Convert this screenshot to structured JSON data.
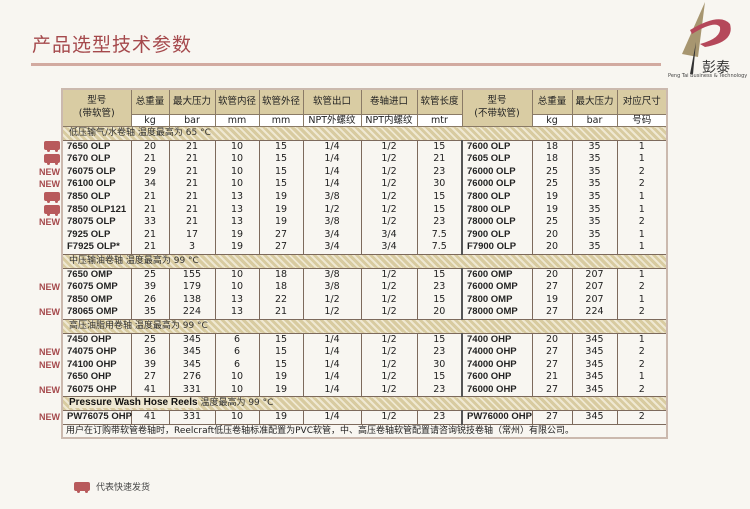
{
  "title": "产品选型技术参数",
  "logo": {
    "chars": "彭泰",
    "subtitle": "Peng Tai Business & Technology"
  },
  "header": {
    "model_with_hose": [
      "型号",
      "(带软管)"
    ],
    "weight": "总重量",
    "pressure": "最大压力",
    "hose_id": "软管内径",
    "hose_od": "软管外径",
    "outlet": "软管出口",
    "inlet": "卷轴进口",
    "length": "软管长度",
    "model_without_hose": [
      "型号",
      "(不带软管)"
    ],
    "weight2": "总重量",
    "pressure2": "最大压力",
    "size": "对应尺寸",
    "units": [
      "kg",
      "bar",
      "mm",
      "mm",
      "NPT外螺纹",
      "NPT内螺纹",
      "mtr",
      "kg",
      "bar",
      "号码"
    ]
  },
  "sections": [
    {
      "title": "低压输气/水卷轴  温度最高为 65 °C",
      "rows": [
        {
          "badge": "truck",
          "model": "7650 OLP",
          "w": "20",
          "p": "21",
          "id": "10",
          "od": "15",
          "out": "1/4",
          "in": "1/2",
          "len": "15",
          "model2": "7600 OLP",
          "w2": "18",
          "p2": "35",
          "size": "1"
        },
        {
          "badge": "truck",
          "model": "7670 OLP",
          "w": "21",
          "p": "21",
          "id": "10",
          "od": "15",
          "out": "1/4",
          "in": "1/2",
          "len": "21",
          "model2": "7605 OLP",
          "w2": "18",
          "p2": "35",
          "size": "1"
        },
        {
          "badge": "NEW",
          "model": "76075 OLP",
          "w": "29",
          "p": "21",
          "id": "10",
          "od": "15",
          "out": "1/4",
          "in": "1/2",
          "len": "23",
          "model2": "76000 OLP",
          "w2": "25",
          "p2": "35",
          "size": "2"
        },
        {
          "badge": "NEW",
          "model": "76100 OLP",
          "w": "34",
          "p": "21",
          "id": "10",
          "od": "15",
          "out": "1/4",
          "in": "1/2",
          "len": "30",
          "model2": "76000 OLP",
          "w2": "25",
          "p2": "35",
          "size": "2"
        },
        {
          "badge": "truck",
          "model": "7850 OLP",
          "w": "21",
          "p": "21",
          "id": "13",
          "od": "19",
          "out": "3/8",
          "in": "1/2",
          "len": "15",
          "model2": "7800 OLP",
          "w2": "19",
          "p2": "35",
          "size": "1"
        },
        {
          "badge": "truck",
          "model": "7850 OLP121",
          "w": "21",
          "p": "21",
          "id": "13",
          "od": "19",
          "out": "1/2",
          "in": "1/2",
          "len": "15",
          "model2": "7800 OLP",
          "w2": "19",
          "p2": "35",
          "size": "1"
        },
        {
          "badge": "NEW",
          "model": "78075 OLP",
          "w": "33",
          "p": "21",
          "id": "13",
          "od": "19",
          "out": "3/8",
          "in": "1/2",
          "len": "23",
          "model2": "78000 OLP",
          "w2": "25",
          "p2": "35",
          "size": "2"
        },
        {
          "badge": "",
          "model": "7925 OLP",
          "w": "21",
          "p": "17",
          "id": "19",
          "od": "27",
          "out": "3/4",
          "in": "3/4",
          "len": "7.5",
          "model2": "7900 OLP",
          "w2": "20",
          "p2": "35",
          "size": "1"
        },
        {
          "badge": "",
          "model": "F7925 OLP*",
          "w": "21",
          "p": "3",
          "id": "19",
          "od": "27",
          "out": "3/4",
          "in": "3/4",
          "len": "7.5",
          "model2": "F7900 OLP",
          "w2": "20",
          "p2": "35",
          "size": "1"
        }
      ]
    },
    {
      "title": "中压输油卷轴  温度最高为 99 °C",
      "rows": [
        {
          "badge": "",
          "model": "7650 OMP",
          "w": "25",
          "p": "155",
          "id": "10",
          "od": "18",
          "out": "3/8",
          "in": "1/2",
          "len": "15",
          "model2": "7600 OMP",
          "w2": "20",
          "p2": "207",
          "size": "1"
        },
        {
          "badge": "NEW",
          "model": "76075 OMP",
          "w": "39",
          "p": "179",
          "id": "10",
          "od": "18",
          "out": "3/8",
          "in": "1/2",
          "len": "23",
          "model2": "76000 OMP",
          "w2": "27",
          "p2": "207",
          "size": "2"
        },
        {
          "badge": "",
          "model": "7850 OMP",
          "w": "26",
          "p": "138",
          "id": "13",
          "od": "22",
          "out": "1/2",
          "in": "1/2",
          "len": "15",
          "model2": "7800 OMP",
          "w2": "19",
          "p2": "207",
          "size": "1"
        },
        {
          "badge": "NEW",
          "model": "78065 OMP",
          "w": "35",
          "p": "224",
          "id": "13",
          "od": "21",
          "out": "1/2",
          "in": "1/2",
          "len": "20",
          "model2": "78000 OMP",
          "w2": "27",
          "p2": "224",
          "size": "2"
        }
      ]
    },
    {
      "title": "高压油脂用卷轴  温度最高为 99 °C",
      "rows": [
        {
          "badge": "",
          "model": "7450 OHP",
          "w": "25",
          "p": "345",
          "id": "6",
          "od": "15",
          "out": "1/4",
          "in": "1/2",
          "len": "15",
          "model2": "7400 OHP",
          "w2": "20",
          "p2": "345",
          "size": "1"
        },
        {
          "badge": "NEW",
          "model": "74075 OHP",
          "w": "36",
          "p": "345",
          "id": "6",
          "od": "15",
          "out": "1/4",
          "in": "1/2",
          "len": "23",
          "model2": "74000 OHP",
          "w2": "27",
          "p2": "345",
          "size": "2"
        },
        {
          "badge": "NEW",
          "model": "74100 OHP",
          "w": "39",
          "p": "345",
          "id": "6",
          "od": "15",
          "out": "1/4",
          "in": "1/2",
          "len": "30",
          "model2": "74000 OHP",
          "w2": "27",
          "p2": "345",
          "size": "2"
        },
        {
          "badge": "",
          "model": "7650 OHP",
          "w": "27",
          "p": "276",
          "id": "10",
          "od": "19",
          "out": "1/4",
          "in": "1/2",
          "len": "15",
          "model2": "7600 OHP",
          "w2": "21",
          "p2": "345",
          "size": "1"
        },
        {
          "badge": "NEW",
          "model": "76075 OHP",
          "w": "41",
          "p": "331",
          "id": "10",
          "od": "19",
          "out": "1/4",
          "in": "1/2",
          "len": "23",
          "model2": "76000 OHP",
          "w2": "27",
          "p2": "345",
          "size": "2"
        }
      ]
    },
    {
      "title_bold": "Pressure Wash Hose Reels",
      "title": " 温度最高为 99 °C",
      "rows": [
        {
          "badge": "NEW",
          "model": "PW76075 OHP",
          "w": "41",
          "p": "331",
          "id": "10",
          "od": "19",
          "out": "1/4",
          "in": "1/2",
          "len": "23",
          "model2": "PW76000 OHP",
          "w2": "27",
          "p2": "345",
          "size": "2"
        }
      ]
    }
  ],
  "note": "用户在订购带软管卷轴时，Reelcraft低压卷轴标准配置为PVC软管，中、高压卷轴软管配置请咨询锐技卷轴（常州）有限公司。",
  "legend": {
    "icon": "truck-icon",
    "text": "代表快速发货"
  },
  "colors": {
    "accent": "#a5494c",
    "header_bg": "#d9cca3",
    "background": "#f8f6f1"
  }
}
